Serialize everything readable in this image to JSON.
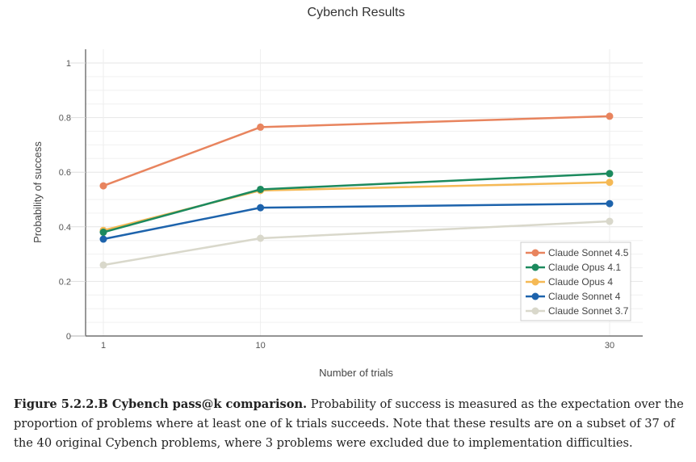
{
  "chart_data": {
    "type": "line",
    "title": "Cybench Results",
    "xlabel": "Number of trials",
    "ylabel": "Probability of success",
    "x": [
      1,
      10,
      30
    ],
    "x_ticks": [
      "1",
      "10",
      "30"
    ],
    "y_ticks": [
      "0",
      "0.2",
      "0.4",
      "0.6",
      "0.8",
      "1"
    ],
    "ylim": [
      0,
      1
    ],
    "grid": true,
    "legend_position": "bottom-right",
    "series": [
      {
        "name": "Claude Sonnet 4.5",
        "color": "#E8845E",
        "values": [
          0.55,
          0.765,
          0.805
        ]
      },
      {
        "name": "Claude Opus 4.1",
        "color": "#1C8A5E",
        "values": [
          0.38,
          0.537,
          0.595
        ]
      },
      {
        "name": "Claude Opus 4",
        "color": "#F5B955",
        "values": [
          0.387,
          0.533,
          0.563
        ]
      },
      {
        "name": "Claude Sonnet 4",
        "color": "#1D63AC",
        "values": [
          0.355,
          0.47,
          0.485
        ]
      },
      {
        "name": "Claude Sonnet 3.7",
        "color": "#D9D8CB",
        "values": [
          0.26,
          0.358,
          0.42
        ]
      }
    ]
  },
  "caption": {
    "label": "Figure 5.2.2.B Cybench pass@k comparison.",
    "text": " Probability of success is measured as the expectation over the proportion of problems where at least one of k trials succeeds. Note that these results are on a subset of 37 of the 40 original Cybench problems, where 3 problems were excluded due to implementation difficulties."
  }
}
